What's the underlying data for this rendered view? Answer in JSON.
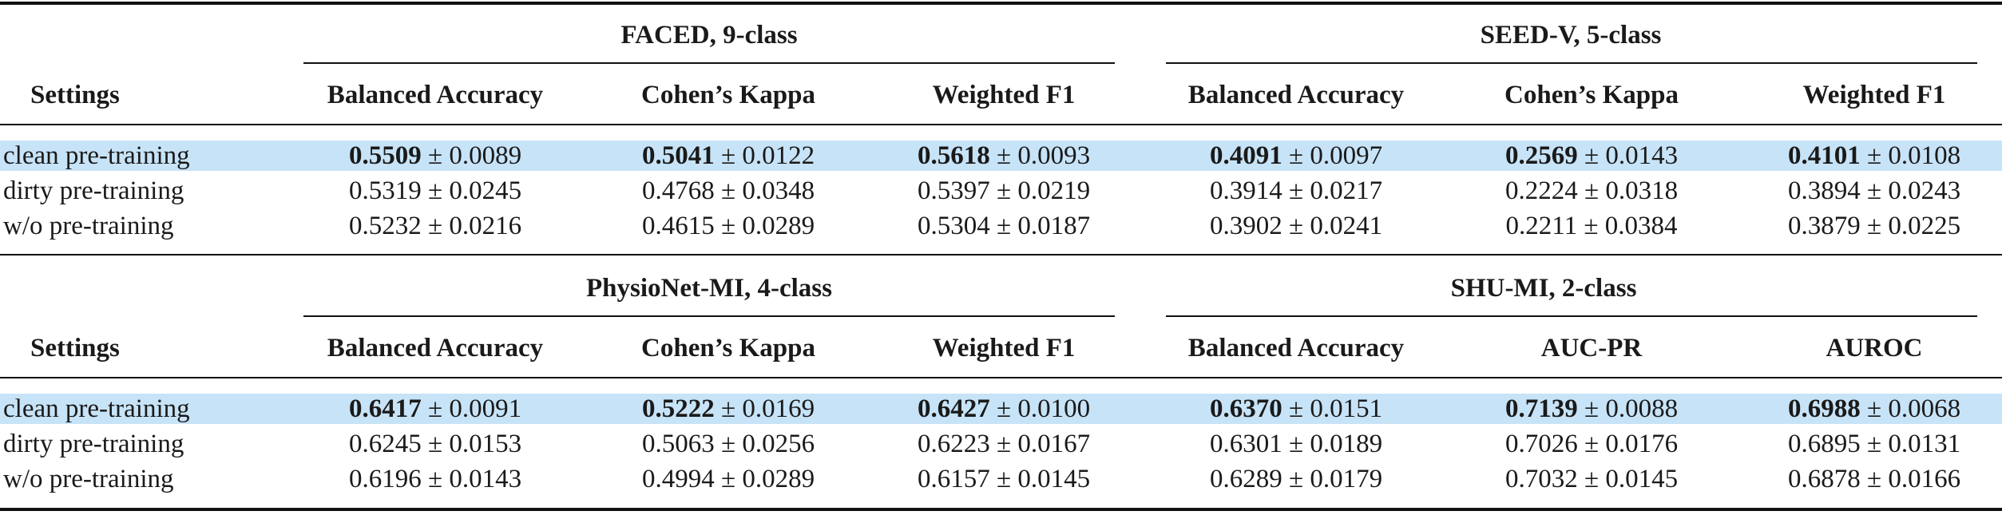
{
  "pm": "±",
  "blocks": [
    {
      "settings_label": "Settings",
      "groups": [
        {
          "title": "FACED, 9-class",
          "columns": [
            "Balanced Accuracy",
            "Cohen’s Kappa",
            "Weighted F1"
          ]
        },
        {
          "title": "SEED-V, 5-class",
          "columns": [
            "Balanced Accuracy",
            "Cohen’s Kappa",
            "Weighted F1"
          ]
        }
      ],
      "rows": [
        {
          "setting": "clean pre-training",
          "highlight": true,
          "cells": [
            {
              "mean": "0.5509",
              "std": "0.0089",
              "bold": true
            },
            {
              "mean": "0.5041",
              "std": "0.0122",
              "bold": true
            },
            {
              "mean": "0.5618",
              "std": "0.0093",
              "bold": true
            },
            {
              "mean": "0.4091",
              "std": "0.0097",
              "bold": true
            },
            {
              "mean": "0.2569",
              "std": "0.0143",
              "bold": true
            },
            {
              "mean": "0.4101",
              "std": "0.0108",
              "bold": true
            }
          ]
        },
        {
          "setting": "dirty pre-training",
          "highlight": false,
          "cells": [
            {
              "mean": "0.5319",
              "std": "0.0245",
              "bold": false
            },
            {
              "mean": "0.4768",
              "std": "0.0348",
              "bold": false
            },
            {
              "mean": "0.5397",
              "std": "0.0219",
              "bold": false
            },
            {
              "mean": "0.3914",
              "std": "0.0217",
              "bold": false
            },
            {
              "mean": "0.2224",
              "std": "0.0318",
              "bold": false
            },
            {
              "mean": "0.3894",
              "std": "0.0243",
              "bold": false
            }
          ]
        },
        {
          "setting": "w/o pre-training",
          "highlight": false,
          "cells": [
            {
              "mean": "0.5232",
              "std": "0.0216",
              "bold": false
            },
            {
              "mean": "0.4615",
              "std": "0.0289",
              "bold": false
            },
            {
              "mean": "0.5304",
              "std": "0.0187",
              "bold": false
            },
            {
              "mean": "0.3902",
              "std": "0.0241",
              "bold": false
            },
            {
              "mean": "0.2211",
              "std": "0.0384",
              "bold": false
            },
            {
              "mean": "0.3879",
              "std": "0.0225",
              "bold": false
            }
          ]
        }
      ]
    },
    {
      "settings_label": "Settings",
      "groups": [
        {
          "title": "PhysioNet-MI, 4-class",
          "columns": [
            "Balanced Accuracy",
            "Cohen’s Kappa",
            "Weighted F1"
          ]
        },
        {
          "title": "SHU-MI, 2-class",
          "columns": [
            "Balanced Accuracy",
            "AUC-PR",
            "AUROC"
          ]
        }
      ],
      "rows": [
        {
          "setting": "clean pre-training",
          "highlight": true,
          "cells": [
            {
              "mean": "0.6417",
              "std": "0.0091",
              "bold": true
            },
            {
              "mean": "0.5222",
              "std": "0.0169",
              "bold": true
            },
            {
              "mean": "0.6427",
              "std": "0.0100",
              "bold": true
            },
            {
              "mean": "0.6370",
              "std": "0.0151",
              "bold": true
            },
            {
              "mean": "0.7139",
              "std": "0.0088",
              "bold": true
            },
            {
              "mean": "0.6988",
              "std": "0.0068",
              "bold": true
            }
          ]
        },
        {
          "setting": "dirty pre-training",
          "highlight": false,
          "cells": [
            {
              "mean": "0.6245",
              "std": "0.0153",
              "bold": false
            },
            {
              "mean": "0.5063",
              "std": "0.0256",
              "bold": false
            },
            {
              "mean": "0.6223",
              "std": "0.0167",
              "bold": false
            },
            {
              "mean": "0.6301",
              "std": "0.0189",
              "bold": false
            },
            {
              "mean": "0.7026",
              "std": "0.0176",
              "bold": false
            },
            {
              "mean": "0.6895",
              "std": "0.0131",
              "bold": false
            }
          ]
        },
        {
          "setting": "w/o pre-training",
          "highlight": false,
          "cells": [
            {
              "mean": "0.6196",
              "std": "0.0143",
              "bold": false
            },
            {
              "mean": "0.4994",
              "std": "0.0289",
              "bold": false
            },
            {
              "mean": "0.6157",
              "std": "0.0145",
              "bold": false
            },
            {
              "mean": "0.6289",
              "std": "0.0179",
              "bold": false
            },
            {
              "mean": "0.7032",
              "std": "0.0145",
              "bold": false
            },
            {
              "mean": "0.6878",
              "std": "0.0166",
              "bold": false
            }
          ]
        }
      ]
    }
  ]
}
